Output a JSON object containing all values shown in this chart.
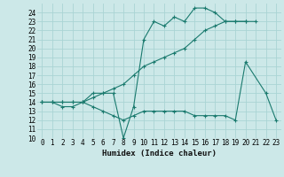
{
  "xlabel": "Humidex (Indice chaleur)",
  "bg_color": "#cce8e8",
  "grid_color": "#aad4d4",
  "line_color": "#1a7a6e",
  "xlim": [
    -0.5,
    23.5
  ],
  "ylim": [
    10,
    25
  ],
  "xticks": [
    0,
    1,
    2,
    3,
    4,
    5,
    6,
    7,
    8,
    9,
    10,
    11,
    12,
    13,
    14,
    15,
    16,
    17,
    18,
    19,
    20,
    21,
    22,
    23
  ],
  "yticks": [
    10,
    11,
    12,
    13,
    14,
    15,
    16,
    17,
    18,
    19,
    20,
    21,
    22,
    23,
    24
  ],
  "series1_x": [
    0,
    1,
    2,
    3,
    4,
    5,
    6,
    7,
    8,
    9,
    10,
    11,
    12,
    13,
    14,
    15,
    16,
    17,
    18,
    19,
    20,
    22,
    23
  ],
  "series1_y": [
    14,
    14,
    14,
    14,
    14,
    15,
    15,
    15,
    10,
    13.5,
    21,
    23,
    22.5,
    23.5,
    23,
    24.5,
    24.5,
    24,
    23,
    23,
    23,
    null,
    null
  ],
  "series2_x": [
    0,
    1,
    2,
    3,
    4,
    5,
    6,
    7,
    8,
    9,
    10,
    11,
    12,
    13,
    14,
    15,
    16,
    17,
    18,
    19,
    20,
    21,
    22,
    23
  ],
  "series2_y": [
    14,
    14,
    14,
    14,
    14,
    14.5,
    15,
    15.5,
    16,
    17,
    18,
    18.5,
    19,
    19.5,
    20,
    21,
    22,
    22.5,
    23,
    23,
    23,
    23,
    null,
    null
  ],
  "series3_x": [
    0,
    1,
    2,
    3,
    4,
    5,
    6,
    7,
    8,
    9,
    10,
    11,
    12,
    13,
    14,
    15,
    16,
    17,
    18,
    19,
    20,
    22,
    23
  ],
  "series3_y": [
    14,
    14,
    13.5,
    13.5,
    14,
    13.5,
    13,
    12.5,
    12,
    12.5,
    13,
    13,
    13,
    13,
    13,
    12.5,
    12.5,
    12.5,
    12.5,
    12,
    18.5,
    15,
    12
  ]
}
